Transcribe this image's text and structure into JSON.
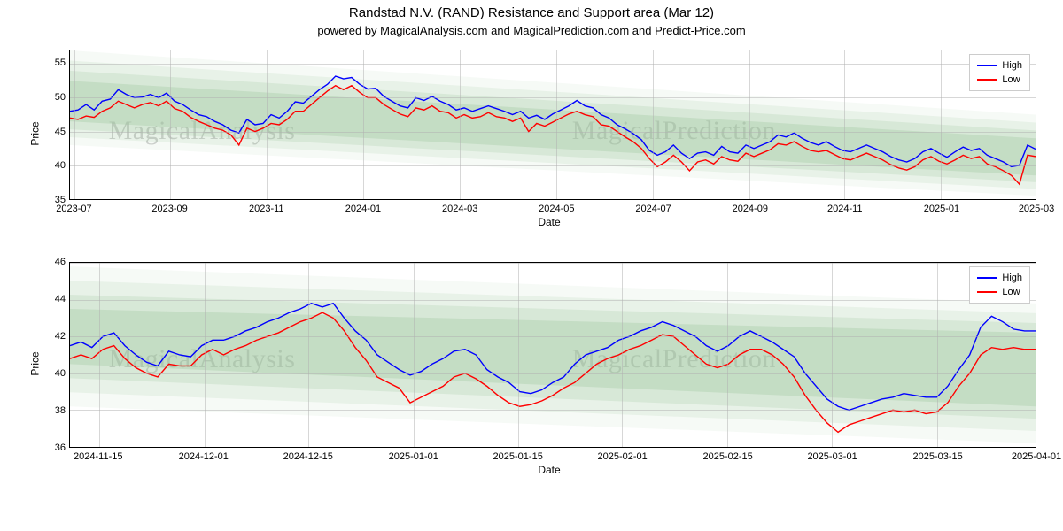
{
  "title": "Randstad N.V. (RAND) Resistance and Support area (Mar 12)",
  "subtitle": "powered by MagicalAnalysis.com and MagicalPrediction.com and Predict-Price.com",
  "watermark_left": "MagicalAnalysis",
  "watermark_right": "MagicalPrediction",
  "colors": {
    "high_line": "#0000ff",
    "low_line": "#ff0000",
    "band_fill": "#97c497",
    "grid": "#b0b0b0",
    "border": "#000000",
    "background": "#ffffff",
    "watermark": "#d0d0d0"
  },
  "legend": {
    "high": "High",
    "low": "Low"
  },
  "chart1": {
    "type": "line",
    "ylabel": "Price",
    "xlabel": "Date",
    "ylim": [
      35,
      57
    ],
    "yticks": [
      35,
      40,
      45,
      50,
      55
    ],
    "xticks": [
      "2023-07",
      "2023-09",
      "2023-11",
      "2024-01",
      "2024-03",
      "2024-05",
      "2024-07",
      "2024-09",
      "2024-11",
      "2025-01",
      "2025-03"
    ],
    "xtick_pos": [
      0.5,
      10.4,
      20.4,
      30.4,
      40.4,
      50.4,
      60.4,
      70.4,
      80.2,
      90.2,
      100
    ],
    "band_opacity_steps": [
      0.09,
      0.14,
      0.2,
      0.3
    ],
    "band": {
      "outer_top": [
        57.0,
        47.5
      ],
      "outer_bot": [
        43.0,
        35.5
      ],
      "core_top": [
        52.5,
        44.0
      ],
      "core_bot": [
        46.5,
        38.5
      ]
    },
    "high": [
      48.0,
      48.2,
      49.0,
      48.2,
      49.5,
      49.8,
      51.2,
      50.5,
      50.0,
      50.1,
      50.5,
      50.0,
      50.7,
      49.5,
      49.0,
      48.2,
      47.5,
      47.2,
      46.5,
      46.0,
      45.2,
      44.8,
      46.8,
      46.0,
      46.2,
      47.5,
      47.0,
      48.0,
      49.4,
      49.2,
      50.2,
      51.2,
      52.0,
      53.2,
      52.8,
      53.0,
      52.0,
      51.3,
      51.4,
      50.2,
      49.5,
      48.8,
      48.5,
      50.0,
      49.6,
      50.2,
      49.5,
      49.0,
      48.2,
      48.5,
      48.0,
      48.4,
      48.8,
      48.4,
      48.0,
      47.5,
      48.0,
      47.0,
      47.4,
      46.8,
      47.6,
      48.2,
      48.8,
      49.6,
      48.8,
      48.5,
      47.5,
      47.0,
      46.0,
      45.4,
      44.7,
      43.8,
      42.2,
      41.5,
      42.0,
      43.0,
      41.8,
      41.0,
      41.8,
      42.0,
      41.5,
      42.8,
      42.0,
      41.8,
      43.0,
      42.5,
      43.0,
      43.5,
      44.5,
      44.2,
      44.8,
      44.0,
      43.4,
      43.0,
      43.5,
      42.8,
      42.2,
      42.0,
      42.5,
      43.0,
      42.5,
      42.0,
      41.3,
      40.8,
      40.5,
      41.0,
      42.0,
      42.5,
      41.8,
      41.2,
      42.0,
      42.7,
      42.2,
      42.5,
      41.5,
      41.0,
      40.5,
      39.8,
      40.0,
      43.0,
      42.4
    ],
    "low": [
      47.0,
      46.8,
      47.3,
      47.1,
      48.0,
      48.5,
      49.5,
      49.0,
      48.5,
      49.0,
      49.3,
      48.8,
      49.5,
      48.4,
      48.0,
      47.1,
      46.5,
      46.0,
      45.5,
      45.2,
      44.5,
      43.0,
      45.5,
      45.0,
      45.5,
      46.2,
      46.0,
      46.8,
      48.0,
      48.0,
      49.0,
      50.0,
      51.0,
      51.8,
      51.2,
      51.8,
      50.8,
      50.0,
      50.0,
      49.0,
      48.3,
      47.6,
      47.2,
      48.5,
      48.2,
      48.8,
      48.0,
      47.8,
      47.0,
      47.5,
      47.0,
      47.2,
      47.8,
      47.2,
      47.0,
      46.5,
      47.0,
      45.0,
      46.2,
      45.8,
      46.4,
      47.0,
      47.6,
      48.0,
      47.5,
      47.2,
      46.0,
      45.8,
      45.0,
      44.2,
      43.5,
      42.5,
      41.0,
      39.8,
      40.5,
      41.5,
      40.5,
      39.2,
      40.5,
      40.8,
      40.2,
      41.3,
      40.8,
      40.6,
      41.8,
      41.3,
      41.8,
      42.3,
      43.2,
      43.0,
      43.5,
      42.8,
      42.2,
      42.0,
      42.2,
      41.6,
      41.0,
      40.8,
      41.3,
      41.8,
      41.3,
      40.8,
      40.1,
      39.6,
      39.3,
      39.8,
      40.8,
      41.3,
      40.6,
      40.2,
      40.8,
      41.5,
      41.0,
      41.3,
      40.2,
      39.8,
      39.2,
      38.5,
      37.2,
      41.5,
      41.3
    ]
  },
  "chart2": {
    "type": "line",
    "ylabel": "Price",
    "xlabel": "Date",
    "ylim": [
      36,
      46
    ],
    "yticks": [
      36,
      38,
      40,
      42,
      44,
      46
    ],
    "xticks": [
      "2024-11-15",
      "2024-12-01",
      "2024-12-15",
      "2025-01-01",
      "2025-01-15",
      "2025-02-01",
      "2025-02-15",
      "2025-03-01",
      "2025-03-15",
      "2025-04-01"
    ],
    "xtick_pos": [
      3,
      13.9,
      24.7,
      35.6,
      46.4,
      57.2,
      68.1,
      78.9,
      89.8,
      100
    ],
    "band_opacity_steps": [
      0.09,
      0.14,
      0.2,
      0.3
    ],
    "band": {
      "outer_top": [
        45.8,
        43.8
      ],
      "outer_bot": [
        38.2,
        36.2
      ],
      "core_top": [
        43.5,
        42.2
      ],
      "core_bot": [
        40.5,
        38.2
      ]
    },
    "high": [
      41.5,
      41.7,
      41.4,
      42.0,
      42.2,
      41.5,
      41.0,
      40.6,
      40.4,
      41.2,
      41.0,
      40.9,
      41.5,
      41.8,
      41.8,
      42.0,
      42.3,
      42.5,
      42.8,
      43.0,
      43.3,
      43.5,
      43.8,
      43.6,
      43.8,
      43.0,
      42.3,
      41.8,
      41.0,
      40.6,
      40.2,
      39.9,
      40.1,
      40.5,
      40.8,
      41.2,
      41.3,
      41.0,
      40.2,
      39.8,
      39.5,
      39.0,
      38.9,
      39.1,
      39.5,
      39.8,
      40.5,
      41.0,
      41.2,
      41.4,
      41.8,
      42.0,
      42.3,
      42.5,
      42.8,
      42.6,
      42.3,
      42.0,
      41.5,
      41.2,
      41.5,
      42.0,
      42.3,
      42.0,
      41.7,
      41.3,
      40.9,
      40.0,
      39.3,
      38.6,
      38.2,
      38.0,
      38.2,
      38.4,
      38.6,
      38.7,
      38.9,
      38.8,
      38.7,
      38.7,
      39.3,
      40.2,
      41.0,
      42.5,
      43.1,
      42.8,
      42.4,
      42.3,
      42.3
    ],
    "low": [
      40.8,
      41.0,
      40.8,
      41.3,
      41.5,
      40.8,
      40.3,
      40.0,
      39.8,
      40.5,
      40.4,
      40.4,
      41.0,
      41.3,
      41.0,
      41.3,
      41.5,
      41.8,
      42.0,
      42.2,
      42.5,
      42.8,
      43.0,
      43.3,
      43.0,
      42.3,
      41.4,
      40.7,
      39.8,
      39.5,
      39.2,
      38.4,
      38.7,
      39.0,
      39.3,
      39.8,
      40.0,
      39.7,
      39.3,
      38.8,
      38.4,
      38.2,
      38.3,
      38.5,
      38.8,
      39.2,
      39.5,
      40.0,
      40.5,
      40.8,
      41.0,
      41.3,
      41.5,
      41.8,
      42.1,
      42.0,
      41.5,
      41.0,
      40.5,
      40.3,
      40.5,
      41.0,
      41.3,
      41.3,
      41.0,
      40.5,
      39.8,
      38.8,
      38.0,
      37.3,
      36.8,
      37.2,
      37.4,
      37.6,
      37.8,
      38.0,
      37.9,
      38.0,
      37.8,
      37.9,
      38.4,
      39.3,
      40.0,
      41.0,
      41.4,
      41.3,
      41.4,
      41.3,
      41.3
    ]
  }
}
